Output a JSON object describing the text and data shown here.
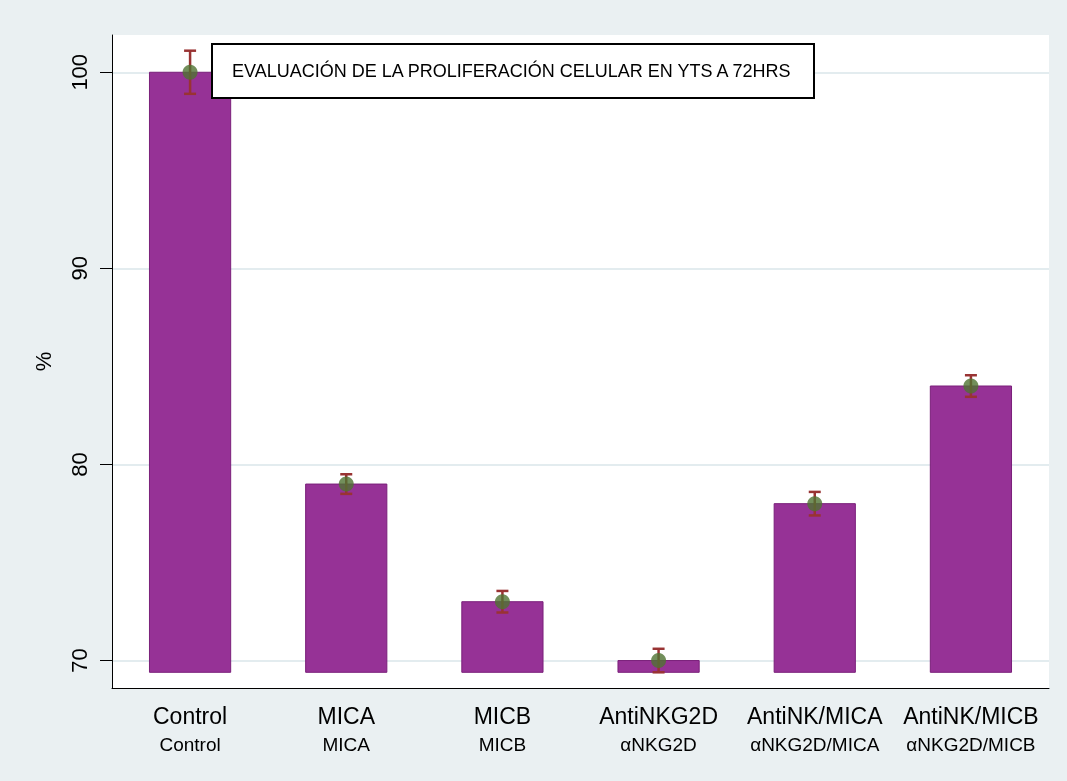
{
  "chart_data": {
    "type": "bar",
    "title": "EVALUACIÓN DE LA PROLIFERACIÓN CELULAR EN YTS A 72HRS",
    "ylabel": "%",
    "categories": [
      "Control\nControl",
      "MICA\nMICA",
      "MICB\nMICB",
      "AntiNKG2D\nαNKG2D",
      "AntiNK/MICA\nαNKG2D/MICA",
      "AntiNK/MICB\nαNKG2D/MICB"
    ],
    "series": [
      {
        "color": "#963296",
        "base": [
          69.4,
          69.4,
          69.4,
          69.4,
          69.4,
          69.4
        ],
        "values": [
          30.6,
          9.6,
          3.6,
          0.6,
          8.6,
          14.6
        ]
      },
      {
        "type": "scatter",
        "color": "#4f7332",
        "x": [
          "Control\nControl",
          "MICA\nMICA",
          "MICB\nMICB",
          "AntiNKG2D\nαNKG2D",
          "AntiNK/MICA\nαNKG2D/MICA",
          "AntiNK/MICB\nαNKG2D/MICB"
        ],
        "values": [
          100,
          79,
          73,
          70,
          78,
          84
        ],
        "errors": [
          1.1,
          0.5,
          0.55,
          0.6,
          0.6,
          0.55
        ]
      }
    ],
    "ylim": [
      68.6,
      101.9
    ],
    "yticks": [
      70,
      80,
      90,
      100
    ],
    "grid": "y",
    "marker": "circle"
  }
}
